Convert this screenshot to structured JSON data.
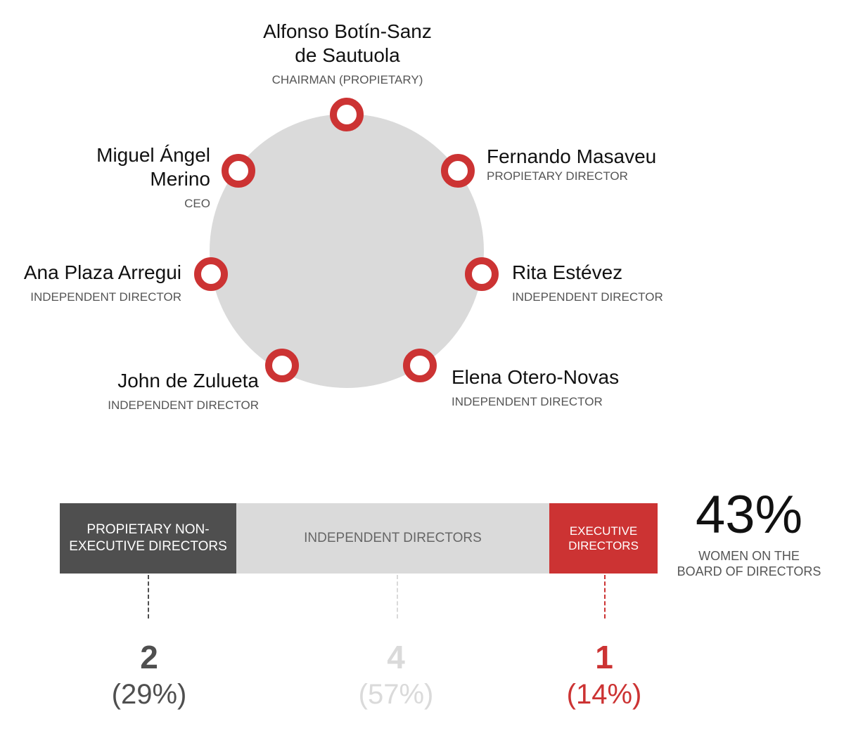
{
  "members": [
    {
      "name_lines": [
        "Alfonso Botín-Sanz",
        "de Sautuola"
      ],
      "role": "CHAIRMAN (PROPIETARY)"
    },
    {
      "name_lines": [
        "Fernando Masaveu"
      ],
      "role": "PROPIETARY DIRECTOR"
    },
    {
      "name_lines": [
        "Rita Estévez"
      ],
      "role": "INDEPENDENT DIRECTOR"
    },
    {
      "name_lines": [
        "Elena Otero-Novas"
      ],
      "role": "INDEPENDENT DIRECTOR"
    },
    {
      "name_lines": [
        "John de Zulueta"
      ],
      "role": "INDEPENDENT DIRECTOR"
    },
    {
      "name_lines": [
        "Ana Plaza Arregui"
      ],
      "role": "INDEPENDENT DIRECTOR"
    },
    {
      "name_lines": [
        "Miguel Ángel",
        "Merino"
      ],
      "role": "CEO"
    }
  ],
  "composition": {
    "segments": [
      {
        "label_lines": [
          "PROPIETARY NON-",
          "EXECUTIVE DIRECTORS"
        ],
        "count": "2",
        "percent": "(29%)",
        "share": 0.29,
        "color": "#4f4f4f"
      },
      {
        "label_lines": [
          "INDEPENDENT DIRECTORS"
        ],
        "count": "4",
        "percent": "(57%)",
        "share": 0.57,
        "color": "#dadada"
      },
      {
        "label_lines": [
          "EXECUTIVE",
          "DIRECTORS"
        ],
        "count": "1",
        "percent": "(14%)",
        "share": 0.14,
        "color": "#cc3333"
      }
    ]
  },
  "women": {
    "value": "43%",
    "label_lines": [
      "WOMEN ON THE",
      "BOARD OF DIRECTORS"
    ]
  },
  "colors": {
    "accent": "#cc3333",
    "circle": "#dadada",
    "dark": "#4f4f4f"
  }
}
